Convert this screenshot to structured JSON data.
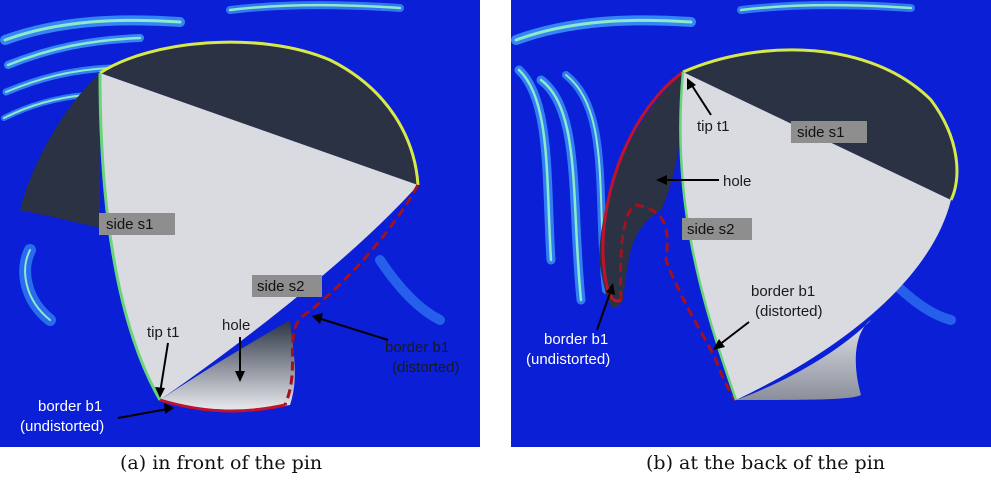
{
  "panels": [
    {
      "caption": "(a) in front of the pin",
      "labels": {
        "side_s1": "side s1",
        "side_s2": "side s2",
        "tip": "tip t1",
        "hole": "hole",
        "border_undist_1": "border b1",
        "border_undist_2": "(undistorted)",
        "border_dist_1": "border b1",
        "border_dist_2": "(distorted)"
      }
    },
    {
      "caption": "(b) at the back of the pin",
      "labels": {
        "side_s1": "side s1",
        "side_s2": "side s2",
        "tip": "tip t1",
        "hole": "hole",
        "border_undist_1": "border b1",
        "border_undist_2": "(undistorted)",
        "border_dist_1": "border b1",
        "border_dist_2": "(distorted)"
      }
    }
  ],
  "colors": {
    "background_field": "#0a1fd6",
    "shape_fill": "#d9dbe0",
    "dark_region": "#2a3243",
    "undistorted_border": "#c0122a",
    "distorted_border": "#a3111e",
    "contour_light": "#8fe8c8",
    "contour_mid": "#3fa0ff"
  }
}
